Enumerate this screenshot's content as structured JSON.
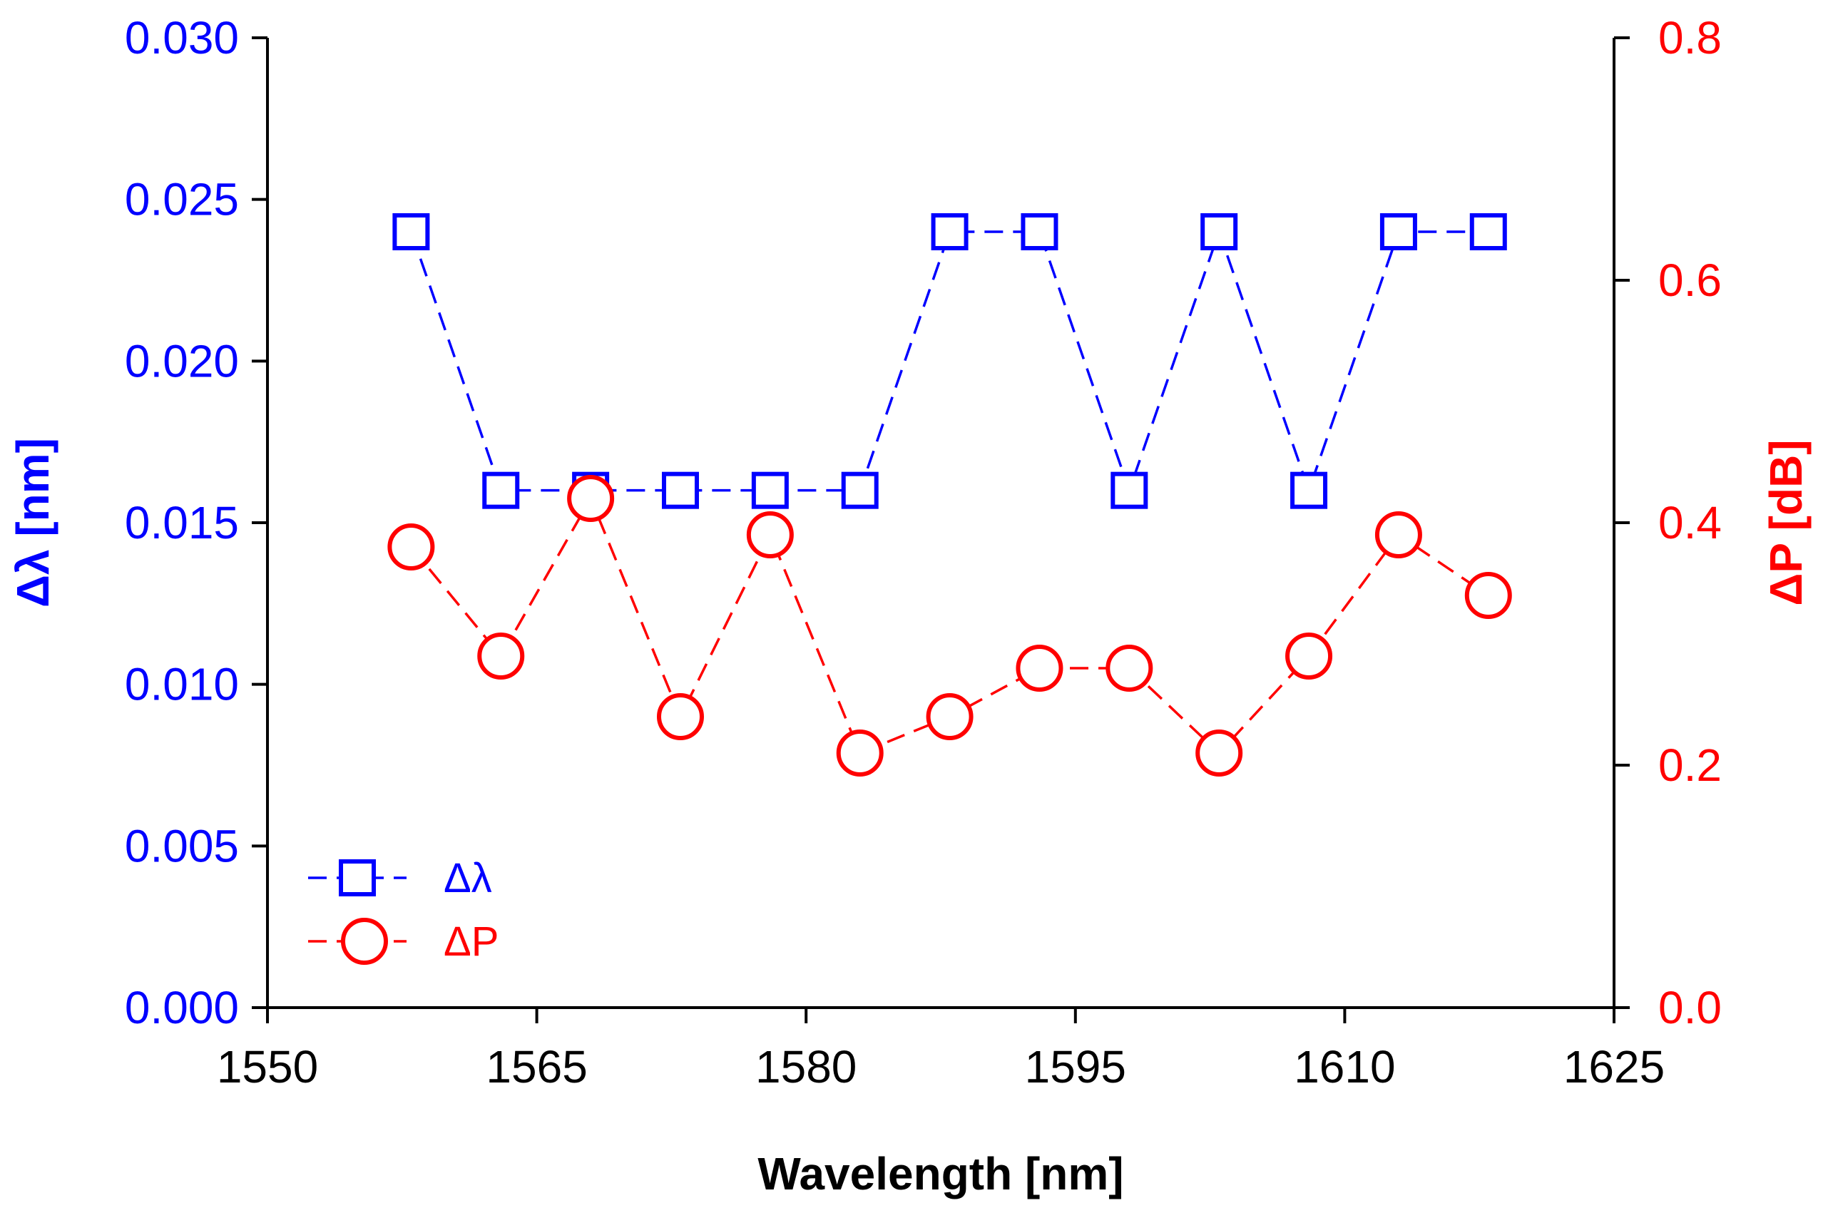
{
  "chart_data": {
    "type": "line",
    "title": "",
    "xlabel": "Wavelength [nm]",
    "ylabel_left": "Δλ [nm]",
    "ylabel_right": "ΔP [dB]",
    "xlim": [
      1550,
      1625
    ],
    "ylim_left": [
      0.0,
      0.03
    ],
    "ylim_right": [
      0.0,
      0.8
    ],
    "x_ticks": [
      "1550",
      "1565",
      "1580",
      "1595",
      "1610",
      "1625"
    ],
    "y_left_ticks": [
      "0.000",
      "0.005",
      "0.010",
      "0.015",
      "0.020",
      "0.025",
      "0.030"
    ],
    "y_right_ticks": [
      "0.0",
      "0.2",
      "0.4",
      "0.6",
      "0.8"
    ],
    "grid": false,
    "legend_position": "bottom-left",
    "series": [
      {
        "name": "Δλ",
        "axis": "left",
        "marker": "square",
        "color": "#0000FF",
        "x": [
          1558,
          1563,
          1568,
          1573,
          1578,
          1583,
          1588,
          1593,
          1598,
          1603,
          1608,
          1613,
          1618
        ],
        "values": [
          0.024,
          0.016,
          0.016,
          0.016,
          0.016,
          0.016,
          0.024,
          0.024,
          0.016,
          0.024,
          0.016,
          0.024,
          0.024
        ]
      },
      {
        "name": "ΔP",
        "axis": "right",
        "marker": "circle",
        "color": "#FF0000",
        "x": [
          1558,
          1563,
          1568,
          1573,
          1578,
          1583,
          1588,
          1593,
          1598,
          1603,
          1608,
          1613,
          1618
        ],
        "values": [
          0.38,
          0.29,
          0.42,
          0.24,
          0.39,
          0.21,
          0.24,
          0.28,
          0.28,
          0.21,
          0.29,
          0.39,
          0.34
        ]
      }
    ]
  }
}
